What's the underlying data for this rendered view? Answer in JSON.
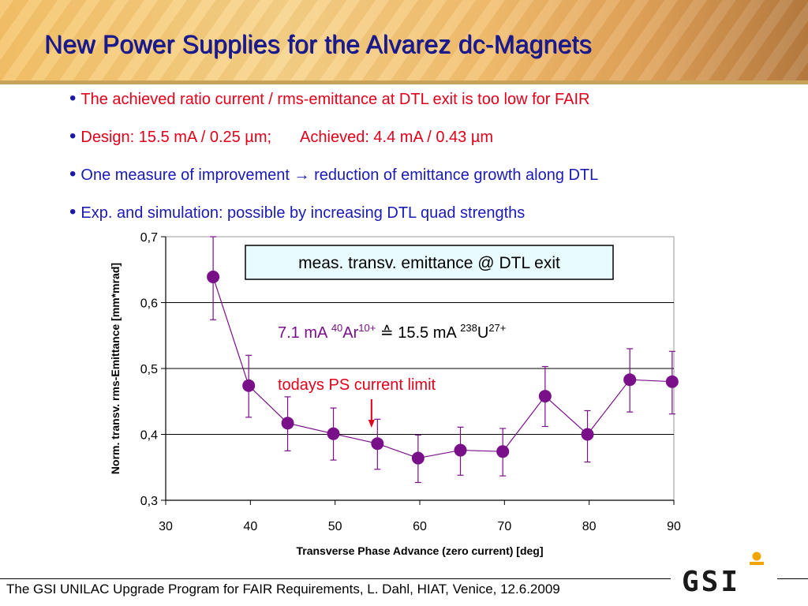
{
  "title": "New Power Supplies for the Alvarez dc-Magnets",
  "bullets": [
    {
      "text": "The achieved ratio current / rms-emittance at DTL exit is too low for FAIR",
      "color": "#e0001a"
    },
    {
      "text_a": "Design: 15.5 mA / 0.25 µm;",
      "text_b": "Achieved:  4.4 mA / 0.43 µm",
      "color": "#e0001a"
    },
    {
      "text": "One measure of improvement → reduction of emittance growth along DTL",
      "color": "#1a1ab4"
    },
    {
      "text": "Exp. and simulation: possible by increasing DTL quad strengths",
      "color": "#1a1ab4"
    }
  ],
  "chart_data": {
    "type": "scatter",
    "xlabel": "Transverse Phase Advance (zero current) [deg]",
    "ylabel": "Norm. transv. rms-Emittance [mm*mrad]",
    "xlim": [
      30,
      90
    ],
    "ylim": [
      0.3,
      0.7
    ],
    "xticks": [
      30,
      40,
      50,
      60,
      70,
      80,
      90
    ],
    "yticks": [
      0.3,
      0.4,
      0.5,
      0.6,
      0.7
    ],
    "xtick_labels": [
      "30",
      "40",
      "50",
      "60",
      "70",
      "80",
      "90"
    ],
    "ytick_labels": [
      "0,3",
      "0,4",
      "0,5",
      "0,6",
      "0,7"
    ],
    "grid": "horizontal",
    "series": [
      {
        "color": "#7a0f8a",
        "connected": true,
        "points": [
          {
            "x": 35.6,
            "y": 0.639,
            "err_low": 0.574,
            "err_high": 0.7
          },
          {
            "x": 39.8,
            "y": 0.474,
            "err_low": 0.426,
            "err_high": 0.52
          },
          {
            "x": 44.4,
            "y": 0.417,
            "err_low": 0.375,
            "err_high": 0.457
          },
          {
            "x": 49.8,
            "y": 0.401,
            "err_low": 0.361,
            "err_high": 0.44
          },
          {
            "x": 55.0,
            "y": 0.386,
            "err_low": 0.347,
            "err_high": 0.423
          },
          {
            "x": 59.8,
            "y": 0.364,
            "err_low": 0.327,
            "err_high": 0.399
          },
          {
            "x": 64.8,
            "y": 0.376,
            "err_low": 0.338,
            "err_high": 0.411
          },
          {
            "x": 69.8,
            "y": 0.374,
            "err_low": 0.337,
            "err_high": 0.409
          },
          {
            "x": 74.8,
            "y": 0.458,
            "err_low": 0.412,
            "err_high": 0.503
          },
          {
            "x": 79.8,
            "y": 0.4,
            "err_low": 0.358,
            "err_high": 0.436
          },
          {
            "x": 84.8,
            "y": 0.483,
            "err_low": 0.434,
            "err_high": 0.53
          },
          {
            "x": 89.8,
            "y": 0.48,
            "err_low": 0.431,
            "err_high": 0.526
          }
        ]
      }
    ],
    "annotations": {
      "box_text": "meas. transv. emittance @ DTL exit",
      "box_fill": "#e8fcff",
      "ratio_a": "7.1 mA ",
      "ratio_sup1": "40",
      "ratio_b": "Ar",
      "ratio_sup2": "10+",
      "ratio_c": " ≙ 15.5 mA ",
      "ratio_sup3": "238",
      "ratio_d": "U",
      "ratio_sup4": "27+",
      "limit_label": "todays PS current limit",
      "limit_x": 54.3,
      "limit_color": "#e0001a"
    }
  },
  "footer": "The GSI UNILAC Upgrade Program for FAIR Requirements, L. Dahl, HIAT, Venice, 12.6.2009",
  "logo_text": "GSI"
}
